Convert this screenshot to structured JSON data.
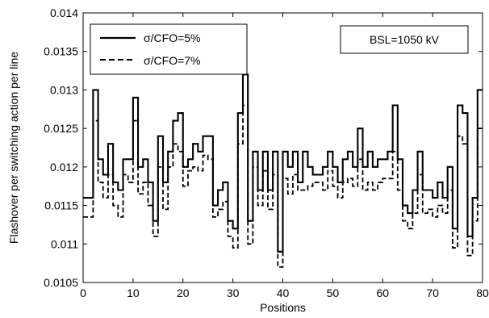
{
  "chart_data": {
    "type": "line",
    "title": "",
    "xlabel": "Positions",
    "ylabel": "Flashover per switching action per line",
    "xlim": [
      0,
      80
    ],
    "ylim": [
      0.0105,
      0.014
    ],
    "xticks": [
      "0",
      "10",
      "20",
      "30",
      "40",
      "50",
      "60",
      "70",
      "80"
    ],
    "yticks": [
      "0.0105",
      "0.011",
      "0.0115",
      "0.012",
      "0.0125",
      "0.013",
      "0.0135",
      "0.014"
    ],
    "grid": false,
    "legend_position": "top-left",
    "annotation": "BSL=1050 kV",
    "series": [
      {
        "name": "σ/CFO=5%",
        "style": "solid",
        "color": "#000000",
        "values": [
          0.0116,
          0.0116,
          0.013,
          0.0121,
          0.0119,
          0.0123,
          0.0118,
          0.0117,
          0.0121,
          0.0121,
          0.0129,
          0.012,
          0.0121,
          0.0118,
          0.0113,
          0.0124,
          0.0118,
          0.0122,
          0.0126,
          0.0127,
          0.012,
          0.0121,
          0.0123,
          0.0122,
          0.0124,
          0.0124,
          0.0115,
          0.0117,
          0.0118,
          0.0113,
          0.0112,
          0.0127,
          0.0132,
          0.0113,
          0.0122,
          0.0117,
          0.0122,
          0.0117,
          0.0122,
          0.0109,
          0.0122,
          0.012,
          0.0122,
          0.0118,
          0.0122,
          0.012,
          0.0119,
          0.0119,
          0.012,
          0.0122,
          0.012,
          0.0118,
          0.0121,
          0.0122,
          0.012,
          0.0125,
          0.012,
          0.0122,
          0.012,
          0.0121,
          0.0121,
          0.0122,
          0.0128,
          0.0121,
          0.0115,
          0.0114,
          0.0117,
          0.0122,
          0.0117,
          0.0117,
          0.0116,
          0.0118,
          0.0116,
          0.012,
          0.0112,
          0.0128,
          0.0127,
          0.0111,
          0.0116,
          0.013
        ]
      },
      {
        "name": "σ/CFO=7%",
        "style": "dashed",
        "color": "#000000",
        "values": [
          0.01135,
          0.01135,
          0.0126,
          0.0118,
          0.0116,
          0.0119,
          0.0115,
          0.01135,
          0.0119,
          0.0118,
          0.0126,
          0.01165,
          0.0118,
          0.0115,
          0.0111,
          0.012,
          0.01145,
          0.012,
          0.0123,
          0.0122,
          0.01175,
          0.01195,
          0.012,
          0.01195,
          0.01215,
          0.0121,
          0.01135,
          0.01145,
          0.01155,
          0.0111,
          0.01095,
          0.0123,
          0.0128,
          0.011,
          0.012,
          0.0115,
          0.01195,
          0.01145,
          0.0119,
          0.0107,
          0.01185,
          0.01165,
          0.0119,
          0.0117,
          0.0117,
          0.01175,
          0.0118,
          0.0118,
          0.0117,
          0.01195,
          0.01175,
          0.0116,
          0.0118,
          0.01185,
          0.01175,
          0.0121,
          0.0117,
          0.0118,
          0.0117,
          0.0118,
          0.01185,
          0.01185,
          0.0122,
          0.0117,
          0.0113,
          0.0112,
          0.0114,
          0.0119,
          0.0114,
          0.01145,
          0.01135,
          0.0115,
          0.0114,
          0.0117,
          0.01095,
          0.0124,
          0.0123,
          0.01085,
          0.0113,
          0.0125
        ]
      }
    ]
  }
}
